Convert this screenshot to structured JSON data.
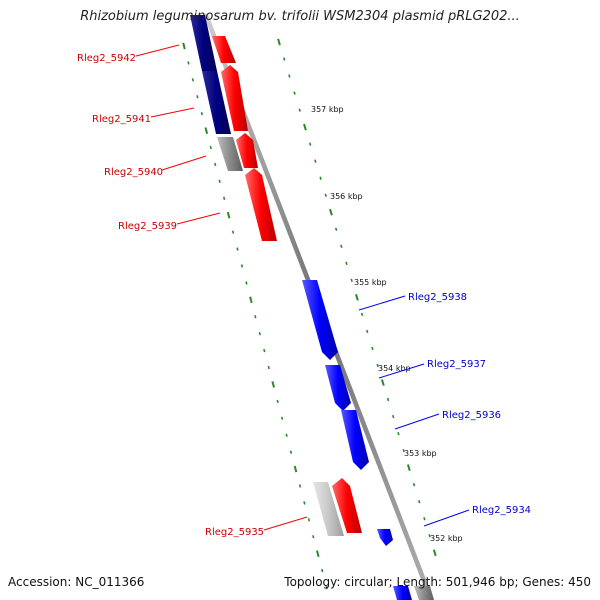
{
  "title": "Rhizobium leguminosarum bv. trifolii WSM2304 plasmid pRLG202...",
  "footer": {
    "accession": "Accession: NC_011366",
    "summary": "Topology: circular; Length: 501,946 bp; Genes: 450"
  },
  "colors": {
    "reverse_strand": "#ff0000",
    "forward_strand": "#0000ff",
    "reverse_label": "#cc0000",
    "forward_label": "#0000cc",
    "ticks": "#2a8a2a",
    "backbone": "#888888"
  },
  "kbp_labels": [
    "357 kbp",
    "356 kbp",
    "355 kbp",
    "354 kbp",
    "353 kbp",
    "352 kbp"
  ],
  "genes": [
    {
      "label": "Rleg2_5942",
      "strand": "reverse"
    },
    {
      "label": "Rleg2_5941",
      "strand": "reverse"
    },
    {
      "label": "Rleg2_5940",
      "strand": "reverse"
    },
    {
      "label": "Rleg2_5939",
      "strand": "reverse"
    },
    {
      "label": "Rleg2_5938",
      "strand": "forward"
    },
    {
      "label": "Rleg2_5937",
      "strand": "forward"
    },
    {
      "label": "Rleg2_5936",
      "strand": "forward"
    },
    {
      "label": "Rleg2_5935",
      "strand": "reverse"
    },
    {
      "label": "Rleg2_5934",
      "strand": "forward"
    }
  ]
}
